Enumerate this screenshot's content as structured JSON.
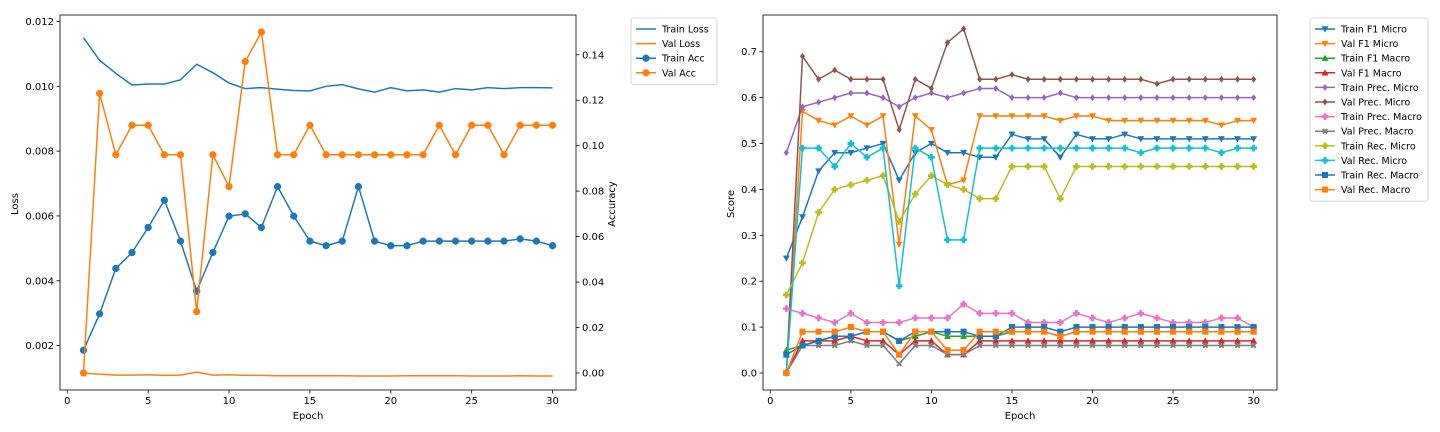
{
  "chart_data": [
    {
      "type": "line",
      "xlabel": "Epoch",
      "ylabel": "Loss",
      "ylabel_right": "Accuracy",
      "xlim": [
        -0.45,
        31.45
      ],
      "ylim": [
        0.00063,
        0.0122
      ],
      "ylim_right": [
        -0.0075,
        0.1575
      ],
      "x_ticks": [
        "0",
        "5",
        "10",
        "15",
        "20",
        "25",
        "30"
      ],
      "y_ticks": [
        "0.002",
        "0.004",
        "0.006",
        "0.008",
        "0.010",
        "0.012"
      ],
      "y_ticks_right": [
        "0.00",
        "0.02",
        "0.04",
        "0.06",
        "0.08",
        "0.10",
        "0.12",
        "0.14"
      ],
      "legend_placement": "outside-top-right",
      "x": [
        1,
        2,
        3,
        4,
        5,
        6,
        7,
        8,
        9,
        10,
        11,
        12,
        13,
        14,
        15,
        16,
        17,
        18,
        19,
        20,
        21,
        22,
        23,
        24,
        25,
        26,
        27,
        28,
        29,
        30
      ],
      "series": [
        {
          "name": "Train Loss",
          "color": "#1f77b4",
          "axis": "left",
          "marker": "none",
          "values": [
            0.0115,
            0.0108,
            0.0104,
            0.01004,
            0.01007,
            0.01007,
            0.0102,
            0.01068,
            0.01042,
            0.0101,
            0.00993,
            0.00996,
            0.00991,
            0.00987,
            0.00986,
            0.01,
            0.01005,
            0.00992,
            0.00982,
            0.00996,
            0.00986,
            0.00989,
            0.00982,
            0.00993,
            0.00989,
            0.00996,
            0.00993,
            0.00996,
            0.00996,
            0.00995
          ]
        },
        {
          "name": "Val Loss",
          "color": "#ff7f0e",
          "axis": "left",
          "marker": "none",
          "values": [
            0.00115,
            0.00112,
            0.00109,
            0.00109,
            0.0011,
            0.00108,
            0.00109,
            0.00118,
            0.00109,
            0.0011,
            0.00108,
            0.00108,
            0.00107,
            0.00107,
            0.00107,
            0.00107,
            0.00107,
            0.00106,
            0.00106,
            0.00106,
            0.00107,
            0.00107,
            0.00107,
            0.00107,
            0.00106,
            0.00106,
            0.00106,
            0.00107,
            0.00106,
            0.00106
          ]
        },
        {
          "name": "Train Acc",
          "color": "#1f77b4",
          "axis": "right",
          "marker": "o",
          "values": [
            0.01,
            0.026,
            0.046,
            0.053,
            0.064,
            0.076,
            0.058,
            0.036,
            0.053,
            0.069,
            0.07,
            0.064,
            0.082,
            0.069,
            0.058,
            0.056,
            0.058,
            0.082,
            0.058,
            0.056,
            0.056,
            0.058,
            0.058,
            0.058,
            0.058,
            0.058,
            0.058,
            0.059,
            0.058,
            0.056
          ]
        },
        {
          "name": "Val Acc",
          "color": "#ff7f0e",
          "axis": "right",
          "marker": "o",
          "values": [
            0.0,
            0.123,
            0.096,
            0.109,
            0.109,
            0.096,
            0.096,
            0.027,
            0.096,
            0.082,
            0.137,
            0.15,
            0.096,
            0.096,
            0.109,
            0.096,
            0.096,
            0.096,
            0.096,
            0.096,
            0.096,
            0.096,
            0.109,
            0.096,
            0.109,
            0.109,
            0.096,
            0.109,
            0.109,
            0.109
          ]
        }
      ]
    },
    {
      "type": "line",
      "xlabel": "Epoch",
      "ylabel": "Score",
      "xlim": [
        -0.45,
        31.45
      ],
      "ylim": [
        -0.037,
        0.78
      ],
      "x_ticks": [
        "0",
        "5",
        "10",
        "15",
        "20",
        "25",
        "30"
      ],
      "y_ticks": [
        "0.0",
        "0.1",
        "0.2",
        "0.3",
        "0.4",
        "0.5",
        "0.6",
        "0.7"
      ],
      "legend_placement": "outside-top-right",
      "x": [
        1,
        2,
        3,
        4,
        5,
        6,
        7,
        8,
        9,
        10,
        11,
        12,
        13,
        14,
        15,
        16,
        17,
        18,
        19,
        20,
        21,
        22,
        23,
        24,
        25,
        26,
        27,
        28,
        29,
        30
      ],
      "series": [
        {
          "name": "Train F1 Micro",
          "color": "#1f77b4",
          "marker": "v",
          "values": [
            0.25,
            0.34,
            0.44,
            0.48,
            0.48,
            0.49,
            0.5,
            0.42,
            0.48,
            0.5,
            0.48,
            0.48,
            0.47,
            0.47,
            0.52,
            0.51,
            0.51,
            0.47,
            0.52,
            0.51,
            0.51,
            0.52,
            0.51,
            0.51,
            0.51,
            0.51,
            0.51,
            0.51,
            0.51,
            0.51
          ]
        },
        {
          "name": "Val F1 Micro",
          "color": "#ff7f0e",
          "marker": "v",
          "values": [
            0.0,
            0.57,
            0.55,
            0.54,
            0.56,
            0.54,
            0.56,
            0.28,
            0.56,
            0.53,
            0.41,
            0.42,
            0.56,
            0.56,
            0.56,
            0.56,
            0.56,
            0.55,
            0.56,
            0.56,
            0.55,
            0.55,
            0.55,
            0.55,
            0.55,
            0.55,
            0.55,
            0.54,
            0.55,
            0.55
          ]
        },
        {
          "name": "Train F1 Macro",
          "color": "#2ca02c",
          "marker": "^",
          "values": [
            0.05,
            0.06,
            0.07,
            0.08,
            0.08,
            0.09,
            0.09,
            0.07,
            0.08,
            0.09,
            0.08,
            0.08,
            0.08,
            0.08,
            0.09,
            0.09,
            0.09,
            0.08,
            0.09,
            0.09,
            0.09,
            0.09,
            0.09,
            0.09,
            0.09,
            0.09,
            0.09,
            0.09,
            0.09,
            0.09
          ]
        },
        {
          "name": "Val F1 Macro",
          "color": "#d62728",
          "marker": "^",
          "values": [
            0.0,
            0.07,
            0.07,
            0.07,
            0.08,
            0.07,
            0.07,
            0.04,
            0.07,
            0.07,
            0.04,
            0.04,
            0.07,
            0.07,
            0.07,
            0.07,
            0.07,
            0.07,
            0.07,
            0.07,
            0.07,
            0.07,
            0.07,
            0.07,
            0.07,
            0.07,
            0.07,
            0.07,
            0.07,
            0.07
          ]
        },
        {
          "name": "Train Prec. Micro",
          "color": "#9467bd",
          "marker": "D",
          "values": [
            0.48,
            0.58,
            0.59,
            0.6,
            0.61,
            0.61,
            0.6,
            0.58,
            0.6,
            0.61,
            0.6,
            0.61,
            0.62,
            0.62,
            0.6,
            0.6,
            0.6,
            0.61,
            0.6,
            0.6,
            0.6,
            0.6,
            0.6,
            0.6,
            0.6,
            0.6,
            0.6,
            0.6,
            0.6,
            0.6
          ]
        },
        {
          "name": "Val Prec. Micro",
          "color": "#8c564b",
          "marker": "D",
          "values": [
            0.0,
            0.69,
            0.64,
            0.66,
            0.64,
            0.64,
            0.64,
            0.53,
            0.64,
            0.62,
            0.72,
            0.75,
            0.64,
            0.64,
            0.65,
            0.64,
            0.64,
            0.64,
            0.64,
            0.64,
            0.64,
            0.64,
            0.64,
            0.63,
            0.64,
            0.64,
            0.64,
            0.64,
            0.64,
            0.64
          ]
        },
        {
          "name": "Train Prec. Macro",
          "color": "#e377c2",
          "marker": "P",
          "values": [
            0.14,
            0.13,
            0.12,
            0.11,
            0.13,
            0.11,
            0.11,
            0.11,
            0.12,
            0.12,
            0.12,
            0.15,
            0.13,
            0.13,
            0.13,
            0.11,
            0.11,
            0.11,
            0.13,
            0.12,
            0.11,
            0.12,
            0.13,
            0.12,
            0.11,
            0.11,
            0.11,
            0.12,
            0.12,
            0.1
          ]
        },
        {
          "name": "Val Prec. Macro",
          "color": "#7f7f7f",
          "marker": "X",
          "values": [
            0.0,
            0.06,
            0.06,
            0.06,
            0.07,
            0.06,
            0.06,
            0.02,
            0.06,
            0.06,
            0.04,
            0.04,
            0.06,
            0.06,
            0.06,
            0.06,
            0.06,
            0.06,
            0.06,
            0.06,
            0.06,
            0.06,
            0.06,
            0.06,
            0.06,
            0.06,
            0.06,
            0.06,
            0.06,
            0.06
          ]
        },
        {
          "name": "Train Rec. Micro",
          "color": "#bcbd22",
          "marker": "P",
          "values": [
            0.17,
            0.24,
            0.35,
            0.4,
            0.41,
            0.42,
            0.43,
            0.33,
            0.39,
            0.43,
            0.41,
            0.4,
            0.38,
            0.38,
            0.45,
            0.45,
            0.45,
            0.38,
            0.45,
            0.45,
            0.45,
            0.45,
            0.45,
            0.45,
            0.45,
            0.45,
            0.45,
            0.45,
            0.45,
            0.45
          ]
        },
        {
          "name": "Val Rec. Micro",
          "color": "#17becf",
          "marker": "P",
          "values": [
            0.0,
            0.49,
            0.49,
            0.45,
            0.5,
            0.47,
            0.49,
            0.19,
            0.49,
            0.47,
            0.29,
            0.29,
            0.49,
            0.49,
            0.49,
            0.49,
            0.49,
            0.49,
            0.49,
            0.49,
            0.49,
            0.49,
            0.48,
            0.49,
            0.49,
            0.49,
            0.49,
            0.48,
            0.49,
            0.49
          ]
        },
        {
          "name": "Train Rec. Macro",
          "color": "#1f77b4",
          "marker": "s",
          "values": [
            0.04,
            0.06,
            0.07,
            0.08,
            0.08,
            0.09,
            0.09,
            0.07,
            0.09,
            0.09,
            0.09,
            0.09,
            0.08,
            0.08,
            0.1,
            0.1,
            0.1,
            0.09,
            0.1,
            0.1,
            0.1,
            0.1,
            0.1,
            0.1,
            0.1,
            0.1,
            0.1,
            0.1,
            0.1,
            0.1
          ]
        },
        {
          "name": "Val Rec. Macro",
          "color": "#ff7f0e",
          "marker": "s",
          "values": [
            0.0,
            0.09,
            0.09,
            0.09,
            0.1,
            0.09,
            0.09,
            0.04,
            0.09,
            0.09,
            0.05,
            0.05,
            0.09,
            0.09,
            0.09,
            0.09,
            0.09,
            0.08,
            0.09,
            0.09,
            0.09,
            0.09,
            0.09,
            0.09,
            0.09,
            0.09,
            0.09,
            0.09,
            0.09,
            0.09
          ]
        }
      ]
    }
  ]
}
